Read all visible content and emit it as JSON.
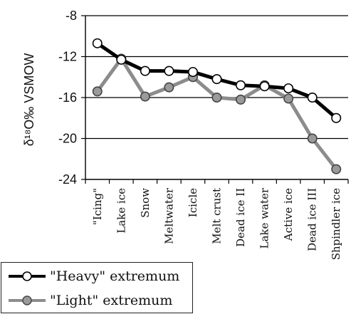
{
  "chart_data": {
    "type": "line",
    "ylabel": "δ¹⁸O‰ VSMOW",
    "ylim": [
      -24,
      -8
    ],
    "yticks": [
      -8,
      -12,
      -16,
      -20,
      -24
    ],
    "grid": true,
    "categories": [
      "\"Icing\"",
      "Lake ice",
      "Snow",
      "Meltwater",
      "Icicle",
      "Melt crust",
      "Dead ice II",
      "Lake water",
      "Active ice",
      "Dead ice III",
      "Shpindler ice"
    ],
    "series": [
      {
        "name": "\"Heavy\" extremum",
        "color": "#000000",
        "marker_fill": "#ffffff",
        "values": [
          -10.7,
          -12.3,
          -13.4,
          -13.4,
          -13.5,
          -14.2,
          -14.8,
          -14.9,
          -15.1,
          -16.0,
          -18.0
        ]
      },
      {
        "name": "\"Light\" extremum",
        "color": "#8c8c8c",
        "marker_fill": "#9a9a9a",
        "values": [
          -15.4,
          -12.2,
          -15.9,
          -15.0,
          -14.0,
          -16.0,
          -16.2,
          -14.8,
          -16.1,
          -20.0,
          -23.0
        ]
      }
    ],
    "legend_position": "bottom-left"
  }
}
